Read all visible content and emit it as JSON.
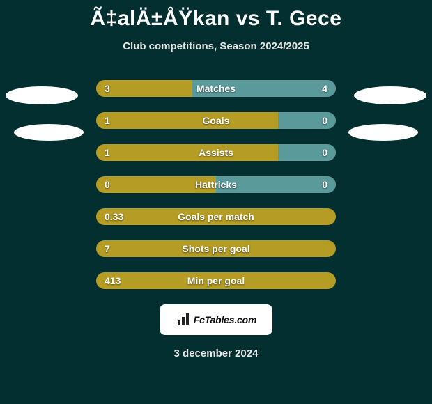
{
  "colors": {
    "background": "#032f30",
    "left_bar": "#b59d25",
    "right_bar": "#5b9a9b",
    "text": "#ffffff",
    "logo_bg": "#ffffff",
    "logo_text": "#111111"
  },
  "title": "Ã‡alÄ±ÅŸkan vs T. Gece",
  "subtitle": "Club competitions, Season 2024/2025",
  "logo_label": "FcTables.com",
  "date": "3 december 2024",
  "stats": [
    {
      "label": "Matches",
      "left_text": "3",
      "right_text": "4",
      "left_pct": 40,
      "right_pct": 60
    },
    {
      "label": "Goals",
      "left_text": "1",
      "right_text": "0",
      "left_pct": 76,
      "right_pct": 24
    },
    {
      "label": "Assists",
      "left_text": "1",
      "right_text": "0",
      "left_pct": 76,
      "right_pct": 24
    },
    {
      "label": "Hattricks",
      "left_text": "0",
      "right_text": "0",
      "left_pct": 50,
      "right_pct": 50
    },
    {
      "label": "Goals per match",
      "left_text": "0.33",
      "right_text": "",
      "left_pct": 100,
      "right_pct": 0
    },
    {
      "label": "Shots per goal",
      "left_text": "7",
      "right_text": "",
      "left_pct": 100,
      "right_pct": 0
    },
    {
      "label": "Min per goal",
      "left_text": "413",
      "right_text": "",
      "left_pct": 100,
      "right_pct": 0
    }
  ]
}
